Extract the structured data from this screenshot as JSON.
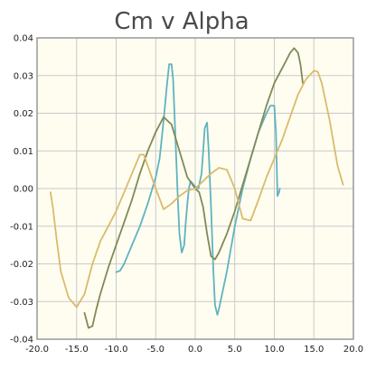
{
  "chart_data": {
    "type": "line",
    "title": "Cm v Alpha",
    "xlabel": "",
    "ylabel": "",
    "xlim": [
      -20,
      20
    ],
    "ylim": [
      -0.04,
      0.04
    ],
    "grid": true,
    "legend": "none",
    "x_ticks": [
      -20,
      -15,
      -10,
      -5,
      0,
      5,
      10,
      15,
      20
    ],
    "x_tick_labels": [
      "-20.0",
      "-15.0",
      "-10.0",
      "-5.0",
      "0.0",
      "5.0",
      "10.0",
      "15.0",
      "20.0"
    ],
    "y_ticks": [
      -0.04,
      -0.03,
      -0.02,
      -0.01,
      0,
      0.01,
      0.02,
      0.03,
      0.04
    ],
    "y_tick_labels": [
      "-0.04",
      "-0.03",
      "-0.02",
      "-0.01",
      "0.00",
      "0.01",
      "0.02",
      "0.03",
      "0.04"
    ],
    "plot_background": "#fffdf0",
    "series": [
      {
        "color": "#5fb3c0",
        "x": [
          -10.0,
          -9.5,
          -9.0,
          -8.0,
          -7.0,
          -6.0,
          -5.0,
          -4.5,
          -4.0,
          -3.6,
          -3.3,
          -3.0,
          -2.8,
          -2.6,
          -2.4,
          -2.2,
          -2.0,
          -1.7,
          -1.4,
          -1.2,
          -1.0,
          -0.8,
          -0.6,
          -0.4,
          0.0,
          0.4,
          0.8,
          1.0,
          1.2,
          1.5,
          1.7,
          2.0,
          2.3,
          2.5,
          2.8,
          3.0,
          4.0,
          5.0,
          6.0,
          7.0,
          8.0,
          9.0,
          9.5,
          10.0,
          10.2,
          10.4,
          10.6,
          10.7
        ],
        "y": [
          -0.0222,
          -0.0218,
          -0.02,
          -0.015,
          -0.01,
          -0.004,
          0.003,
          0.008,
          0.018,
          0.027,
          0.033,
          0.033,
          0.029,
          0.019,
          0.008,
          -0.003,
          -0.012,
          -0.017,
          -0.015,
          -0.009,
          -0.004,
          0.0,
          0.002,
          0.0015,
          0.0005,
          0.0,
          0.004,
          0.01,
          0.016,
          0.0175,
          0.01,
          -0.005,
          -0.022,
          -0.031,
          -0.0335,
          -0.032,
          -0.022,
          -0.01,
          0.0,
          0.008,
          0.015,
          0.02,
          0.022,
          0.022,
          0.015,
          -0.002,
          -0.001,
          0.0
        ]
      },
      {
        "color": "#808a58",
        "x": [
          -14.0,
          -13.5,
          -13.0,
          -12.5,
          -12.0,
          -11.0,
          -10.0,
          -9.0,
          -8.0,
          -7.0,
          -6.0,
          -5.0,
          -4.0,
          -3.0,
          -2.0,
          -1.0,
          0.0,
          0.5,
          1.0,
          1.5,
          2.0,
          2.5,
          3.0,
          4.0,
          5.0,
          6.0,
          7.0,
          8.0,
          9.0,
          10.0,
          11.0,
          12.0,
          12.5,
          13.0,
          13.3,
          13.6
        ],
        "y": [
          -0.033,
          -0.037,
          -0.0365,
          -0.032,
          -0.028,
          -0.021,
          -0.015,
          -0.009,
          -0.003,
          0.004,
          0.01,
          0.015,
          0.019,
          0.017,
          0.01,
          0.003,
          0.0,
          -0.001,
          -0.005,
          -0.012,
          -0.018,
          -0.0188,
          -0.017,
          -0.012,
          -0.006,
          0.001,
          0.008,
          0.015,
          0.022,
          0.028,
          0.032,
          0.036,
          0.0373,
          0.036,
          0.033,
          0.028
        ]
      },
      {
        "color": "#d9bb6c",
        "x": [
          -18.3,
          -18.0,
          -17.5,
          -17.0,
          -16.0,
          -15.0,
          -14.0,
          -13.0,
          -12.0,
          -11.0,
          -10.0,
          -9.0,
          -8.0,
          -7.0,
          -6.5,
          -6.0,
          -5.0,
          -4.0,
          -3.0,
          -2.0,
          -1.0,
          0.0,
          1.0,
          2.0,
          3.0,
          4.0,
          5.0,
          5.5,
          6.0,
          7.0,
          8.0,
          9.0,
          10.0,
          11.0,
          12.0,
          13.0,
          14.0,
          15.0,
          15.5,
          16.0,
          17.0,
          18.0,
          18.7
        ],
        "y": [
          -0.001,
          -0.005,
          -0.014,
          -0.022,
          -0.029,
          -0.0315,
          -0.028,
          -0.02,
          -0.014,
          -0.01,
          -0.006,
          -0.001,
          0.004,
          0.009,
          0.009,
          0.006,
          0.0,
          -0.0055,
          -0.004,
          -0.002,
          -0.0005,
          0.0,
          0.002,
          0.004,
          0.0055,
          0.005,
          0.0,
          -0.004,
          -0.008,
          -0.0085,
          -0.003,
          0.003,
          0.008,
          0.013,
          0.019,
          0.025,
          0.029,
          0.0313,
          0.031,
          0.028,
          0.018,
          0.006,
          0.001
        ]
      }
    ]
  }
}
